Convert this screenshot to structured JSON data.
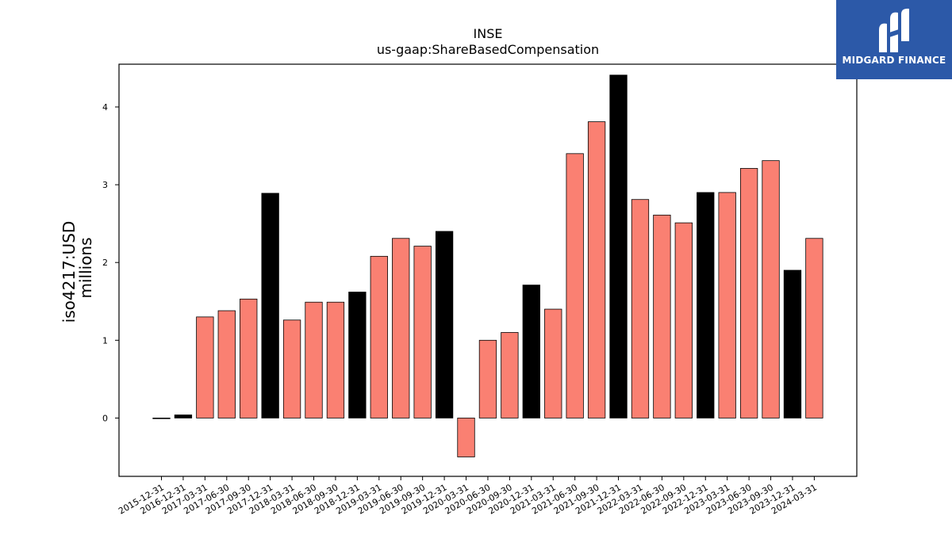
{
  "brand": {
    "name": "MIDGARD FINANCE",
    "bg": "#2c59a8"
  },
  "chart_data": {
    "type": "bar",
    "title": "INSE",
    "subtitle": "us-gaap:ShareBasedCompensation",
    "ylabel": "iso4217:USD",
    "ylabel2": "millions",
    "xlabel": "",
    "ylim": [
      -0.75,
      4.55
    ],
    "yticks": [
      0,
      1,
      2,
      3,
      4
    ],
    "grid": false,
    "colors": {
      "quarter": "#fa8072",
      "year_end": "#000000",
      "edge": "#000000"
    },
    "categories": [
      "2015-12-31",
      "2016-12-31",
      "2017-03-31",
      "2017-06-30",
      "2017-09-30",
      "2017-12-31",
      "2018-03-31",
      "2018-06-30",
      "2018-09-30",
      "2018-12-31",
      "2019-03-31",
      "2019-06-30",
      "2019-09-30",
      "2019-12-31",
      "2020-03-31",
      "2020-06-30",
      "2020-09-30",
      "2020-12-31",
      "2021-03-31",
      "2021-06-30",
      "2021-09-30",
      "2021-12-31",
      "2022-03-31",
      "2022-06-30",
      "2022-09-30",
      "2022-12-31",
      "2023-03-31",
      "2023-06-30",
      "2023-09-30",
      "2023-12-31",
      "2024-03-31"
    ],
    "values": [
      0.0,
      0.04,
      1.3,
      1.38,
      1.53,
      2.89,
      1.26,
      1.49,
      1.49,
      1.62,
      2.08,
      2.31,
      2.21,
      2.4,
      -0.5,
      1.0,
      1.1,
      1.71,
      1.4,
      3.4,
      3.81,
      4.41,
      2.81,
      2.61,
      2.51,
      2.9,
      2.9,
      3.21,
      3.31,
      1.9,
      2.31
    ],
    "year_end": [
      true,
      true,
      false,
      false,
      false,
      true,
      false,
      false,
      false,
      true,
      false,
      false,
      false,
      true,
      false,
      false,
      false,
      true,
      false,
      false,
      false,
      true,
      false,
      false,
      false,
      true,
      false,
      false,
      false,
      true,
      false
    ]
  }
}
